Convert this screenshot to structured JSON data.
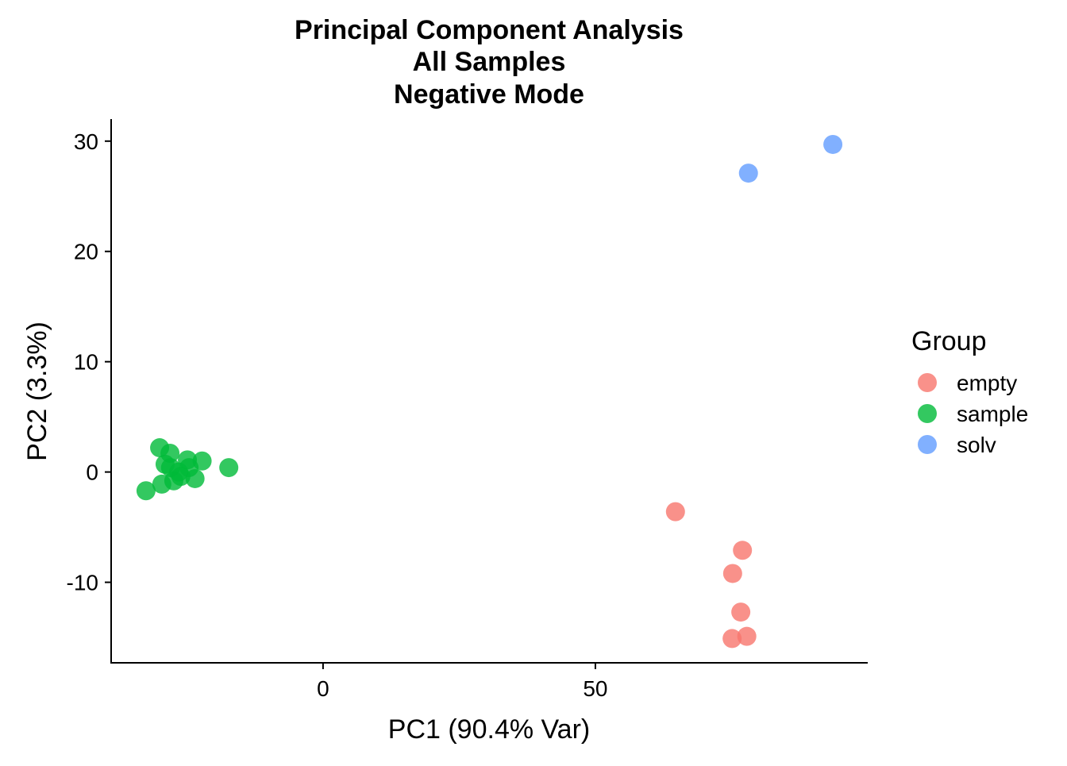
{
  "chart_data": {
    "type": "scatter",
    "title": [
      "Principal Component Analysis",
      "All Samples",
      "Negative Mode"
    ],
    "xlabel": "PC1 (90.4% Var)",
    "ylabel": "PC2 (3.3%)",
    "xlim": [
      -38.9,
      100
    ],
    "ylim": [
      -17.3,
      32
    ],
    "xticks": [
      0,
      50
    ],
    "yticks": [
      -10,
      0,
      10,
      20,
      30
    ],
    "grid": false,
    "legend": {
      "title": "Group",
      "placement": "right"
    },
    "series": [
      {
        "name": "empty",
        "color": "#F8766D",
        "points": [
          [
            64.7,
            -3.6
          ],
          [
            77.0,
            -7.1
          ],
          [
            75.2,
            -9.2
          ],
          [
            76.7,
            -12.7
          ],
          [
            75.1,
            -15.1
          ],
          [
            77.8,
            -14.9
          ]
        ]
      },
      {
        "name": "sample",
        "color": "#00BA38",
        "points": [
          [
            -32.5,
            -1.7
          ],
          [
            -30.0,
            2.2
          ],
          [
            -28.1,
            1.7
          ],
          [
            -29.6,
            -1.1
          ],
          [
            -27.4,
            -0.8
          ],
          [
            -29.0,
            0.7
          ],
          [
            -24.9,
            1.1
          ],
          [
            -22.2,
            1.0
          ],
          [
            -23.5,
            -0.6
          ],
          [
            -17.3,
            0.4
          ],
          [
            -26.5,
            0.0
          ],
          [
            -24.6,
            0.4
          ],
          [
            -28.0,
            0.4
          ],
          [
            -26.1,
            -0.4
          ]
        ]
      },
      {
        "name": "solv",
        "color": "#619CFF",
        "points": [
          [
            78.1,
            27.1
          ],
          [
            93.6,
            29.7
          ]
        ]
      }
    ]
  }
}
